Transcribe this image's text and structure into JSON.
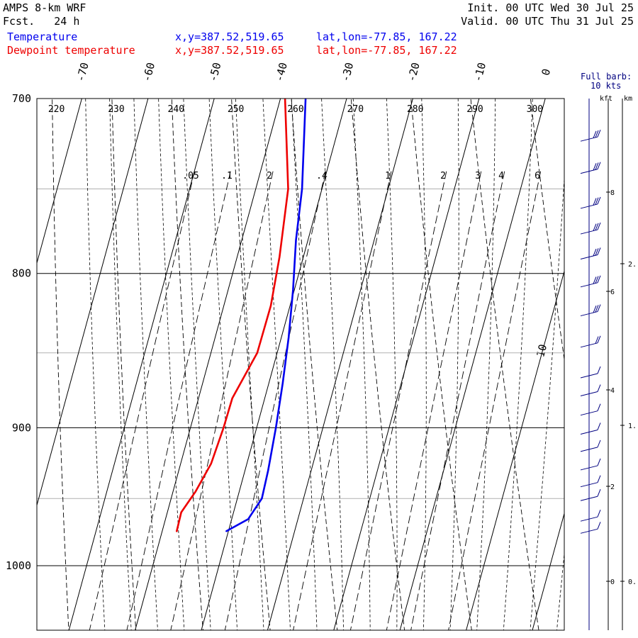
{
  "header": {
    "model": "AMPS 8-km WRF",
    "fcst": "Fcst.   24 h",
    "init": "Init. 00 UTC Wed 30 Jul 25",
    "valid": "Valid. 00 UTC Thu 31 Jul 25"
  },
  "legend": {
    "temperature": {
      "label": "Temperature",
      "xy": "x,y=387.52,519.65",
      "latlon": "lat,lon=-77.85, 167.22",
      "color": "#0000ee"
    },
    "dewpoint": {
      "label": "Dewpoint temperature",
      "xy": "x,y=387.52,519.65",
      "latlon": "lat,lon=-77.85, 167.22",
      "color": "#ee0000"
    }
  },
  "wind_panel": {
    "title": "Full barb:",
    "subtitle": "10 kts",
    "kft_label": "kft",
    "km_label": "km",
    "kft_ticks": [
      "8",
      "6",
      "4",
      "2",
      "0"
    ],
    "km_ticks": [
      "2.",
      "1.",
      "0."
    ]
  },
  "chart_data": {
    "type": "line",
    "title": "",
    "y_axis": {
      "quantity": "pressure",
      "unit": "hPa",
      "scale": "log",
      "range": [
        1045,
        700
      ],
      "tick_labels": [
        "700",
        "800",
        "900",
        "1000"
      ]
    },
    "skew_temperature_labels": [
      "-70",
      "-60",
      "-50",
      "-40",
      "-30",
      "-20",
      "-10",
      "0",
      "10"
    ],
    "potential_temperature_labels": [
      "220",
      "230",
      "240",
      "250",
      "260",
      "270",
      "280",
      "290",
      "300"
    ],
    "mixing_ratio_labels": [
      ".05",
      ".1",
      "2",
      ".4",
      "1",
      "2",
      "3",
      "4",
      "6"
    ],
    "series": [
      {
        "name": "Temperature",
        "color": "#0000ee",
        "points": [
          [
            974,
            -30.3
          ],
          [
            965,
            -27.5
          ],
          [
            950,
            -26.3
          ],
          [
            930,
            -26.5
          ],
          [
            900,
            -27.1
          ],
          [
            870,
            -27.9
          ],
          [
            840,
            -28.9
          ],
          [
            810,
            -30.2
          ],
          [
            780,
            -31.8
          ],
          [
            750,
            -33.0
          ],
          [
            700,
            -36.2
          ]
        ]
      },
      {
        "name": "Dewpoint temperature",
        "color": "#ee0000",
        "points": [
          [
            974,
            -37.8
          ],
          [
            960,
            -37.9
          ],
          [
            945,
            -36.6
          ],
          [
            925,
            -35.4
          ],
          [
            900,
            -35.0
          ],
          [
            880,
            -34.9
          ],
          [
            850,
            -33.0
          ],
          [
            820,
            -32.9
          ],
          [
            790,
            -33.6
          ],
          [
            750,
            -35.1
          ],
          [
            700,
            -39.3
          ]
        ]
      }
    ],
    "wind_barbs": [
      {
        "pressure": 974,
        "speed_kt": 10
      },
      {
        "pressure": 965,
        "speed_kt": 10
      },
      {
        "pressure": 950,
        "speed_kt": 10
      },
      {
        "pressure": 940,
        "speed_kt": 10
      },
      {
        "pressure": 928,
        "speed_kt": 10
      },
      {
        "pressure": 915,
        "speed_kt": 10
      },
      {
        "pressure": 903,
        "speed_kt": 10
      },
      {
        "pressure": 890,
        "speed_kt": 10
      },
      {
        "pressure": 877,
        "speed_kt": 10
      },
      {
        "pressure": 865,
        "speed_kt": 10
      },
      {
        "pressure": 845,
        "speed_kt": 20
      },
      {
        "pressure": 825,
        "speed_kt": 30
      },
      {
        "pressure": 807,
        "speed_kt": 30
      },
      {
        "pressure": 790,
        "speed_kt": 30
      },
      {
        "pressure": 775,
        "speed_kt": 30
      },
      {
        "pressure": 760,
        "speed_kt": 30
      },
      {
        "pressure": 740,
        "speed_kt": 30
      },
      {
        "pressure": 722,
        "speed_kt": 30
      }
    ]
  }
}
